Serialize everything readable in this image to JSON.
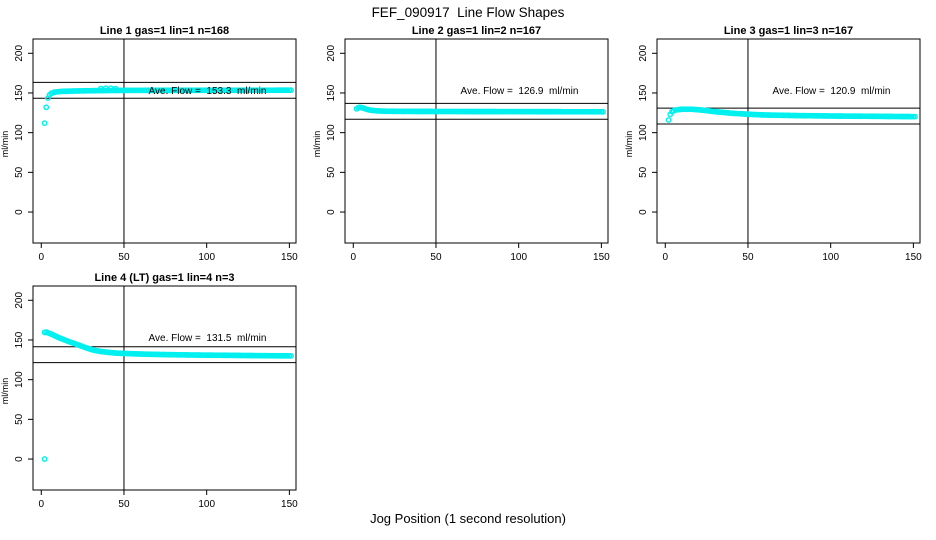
{
  "page_title": "FEF_090917  Line Flow Shapes",
  "x_axis_label": "Jog Position (1 second resolution)",
  "colors": {
    "points": "#00F0F0",
    "axis": "#000000",
    "background": "#FFFFFF"
  },
  "chart_data": [
    {
      "type": "scatter",
      "marker": "open-circle",
      "title": "Line 1 gas=1 lin=1 n=168",
      "n": 168,
      "ylabel": "ml/min",
      "annotation": "Ave. Flow =  153.3  ml/min",
      "ave_flow": 153.3,
      "hlines": [
        143.3,
        163.3
      ],
      "vline": 50,
      "xlim": [
        -5,
        154
      ],
      "ylim": [
        -39,
        218
      ],
      "xticks": [
        0,
        50,
        100,
        150
      ],
      "yticks": [
        0,
        50,
        100,
        150,
        200
      ],
      "grid": false,
      "legend": false,
      "keypoints": [
        [
          2,
          112
        ],
        [
          3,
          132
        ],
        [
          4,
          143.5
        ],
        [
          5,
          147.5
        ],
        [
          6,
          149.5
        ],
        [
          8,
          151
        ],
        [
          12,
          152
        ],
        [
          20,
          152.5
        ],
        [
          35,
          153
        ],
        [
          50,
          153.3
        ],
        [
          100,
          153.4
        ],
        [
          151,
          153.5
        ]
      ],
      "extra_points": [
        [
          36,
          155.5
        ],
        [
          39,
          156
        ],
        [
          42,
          156
        ],
        [
          45,
          155.5
        ]
      ]
    },
    {
      "type": "scatter",
      "marker": "open-circle",
      "title": "Line 2 gas=1 lin=2 n=167",
      "n": 167,
      "ylabel": "ml/min",
      "annotation": "Ave. Flow =  126.9  ml/min",
      "ave_flow": 126.9,
      "hlines": [
        116.9,
        136.9
      ],
      "vline": 50,
      "xlim": [
        -5,
        154
      ],
      "ylim": [
        -39,
        218
      ],
      "xticks": [
        0,
        50,
        100,
        150
      ],
      "yticks": [
        0,
        50,
        100,
        150,
        200
      ],
      "grid": false,
      "legend": false,
      "keypoints": [
        [
          2,
          130
        ],
        [
          3,
          131.5
        ],
        [
          4,
          132
        ],
        [
          6,
          131
        ],
        [
          8,
          129.5
        ],
        [
          10,
          128.5
        ],
        [
          14,
          127.5
        ],
        [
          20,
          127
        ],
        [
          30,
          126.8
        ],
        [
          50,
          126.7
        ],
        [
          100,
          126.5
        ],
        [
          151,
          126.3
        ]
      ],
      "extra_points": []
    },
    {
      "type": "scatter",
      "marker": "open-circle",
      "title": "Line 3 gas=1 lin=3 n=167",
      "n": 167,
      "ylabel": "ml/min",
      "annotation": "Ave. Flow =  120.9  ml/min",
      "ave_flow": 120.9,
      "hlines": [
        110.9,
        130.9
      ],
      "vline": 50,
      "xlim": [
        -5,
        154
      ],
      "ylim": [
        -39,
        218
      ],
      "xticks": [
        0,
        50,
        100,
        150
      ],
      "yticks": [
        0,
        50,
        100,
        150,
        200
      ],
      "grid": false,
      "legend": false,
      "keypoints": [
        [
          2,
          116
        ],
        [
          3,
          123
        ],
        [
          4,
          126.5
        ],
        [
          6,
          128.5
        ],
        [
          10,
          129.5
        ],
        [
          16,
          129.5
        ],
        [
          22,
          128.5
        ],
        [
          30,
          126.5
        ],
        [
          40,
          124.5
        ],
        [
          50,
          123.2
        ],
        [
          60,
          122.3
        ],
        [
          80,
          121.5
        ],
        [
          100,
          121
        ],
        [
          120,
          120.7
        ],
        [
          151,
          120.2
        ]
      ],
      "extra_points": []
    },
    {
      "type": "scatter",
      "marker": "open-circle",
      "title": "Line 4 (LT) gas=1 lin=4 n=3",
      "n": 3,
      "ylabel": "ml/min",
      "annotation": "Ave. Flow =  131.5  ml/min",
      "ave_flow": 131.5,
      "hlines": [
        121.5,
        141.5
      ],
      "vline": 50,
      "xlim": [
        -5,
        154
      ],
      "ylim": [
        -39,
        218
      ],
      "xticks": [
        0,
        50,
        100,
        150
      ],
      "yticks": [
        0,
        50,
        100,
        150,
        200
      ],
      "grid": false,
      "legend": false,
      "keypoints": [
        [
          2,
          159.5
        ],
        [
          3,
          160
        ],
        [
          4,
          159
        ],
        [
          6,
          157.5
        ],
        [
          8,
          155.5
        ],
        [
          10,
          153.5
        ],
        [
          13,
          151
        ],
        [
          16,
          148.5
        ],
        [
          20,
          145.5
        ],
        [
          24,
          142.5
        ],
        [
          28,
          139.5
        ],
        [
          32,
          137
        ],
        [
          36,
          135.5
        ],
        [
          40,
          134.5
        ],
        [
          45,
          133.5
        ],
        [
          50,
          133
        ],
        [
          60,
          132.3
        ],
        [
          70,
          131.8
        ],
        [
          80,
          131.4
        ],
        [
          90,
          131.1
        ],
        [
          100,
          130.9
        ],
        [
          110,
          130.7
        ],
        [
          120,
          130.5
        ],
        [
          135,
          130.2
        ],
        [
          151,
          130
        ]
      ],
      "extra_points": [
        [
          2,
          0
        ]
      ]
    }
  ]
}
